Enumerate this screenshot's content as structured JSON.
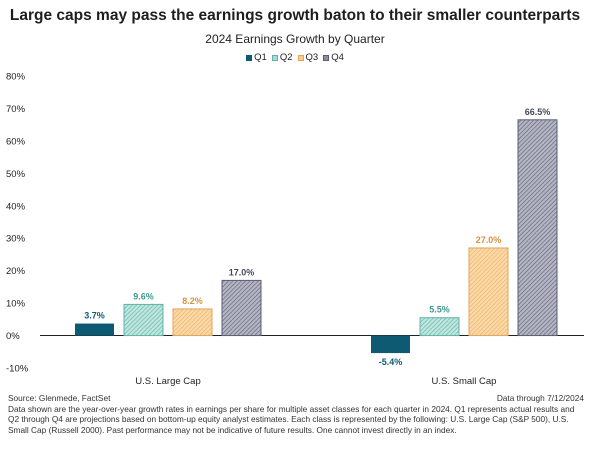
{
  "title": "Large caps may pass the earnings growth baton to their smaller counterparts",
  "subtitle": "2024 Earnings Growth by Quarter",
  "legend": [
    {
      "label": "Q1",
      "color": "#0e5a73",
      "icon": "square-solid"
    },
    {
      "label": "Q2",
      "color": "#a8dcd3",
      "icon": "square-hatched"
    },
    {
      "label": "Q3",
      "color": "#f8cd8e",
      "icon": "square-hatched"
    },
    {
      "label": "Q4",
      "color": "#8a8d9e",
      "icon": "square-hatched"
    }
  ],
  "chart_data": {
    "type": "bar",
    "title": "2024 Earnings Growth by Quarter",
    "categories": [
      "U.S. Large Cap",
      "U.S. Small Cap"
    ],
    "series": [
      {
        "name": "Q1",
        "values": [
          3.7,
          -5.4
        ],
        "labels": [
          "3.7%",
          "-5.4%"
        ]
      },
      {
        "name": "Q2",
        "values": [
          9.6,
          5.5
        ],
        "labels": [
          "9.6%",
          "5.5%"
        ]
      },
      {
        "name": "Q3",
        "values": [
          8.2,
          27.0
        ],
        "labels": [
          "8.2%",
          "27.0%"
        ]
      },
      {
        "name": "Q4",
        "values": [
          17.0,
          66.5
        ],
        "labels": [
          "17.0%",
          "66.5%"
        ]
      }
    ],
    "ylim": [
      -10,
      80
    ],
    "yticks": [
      80,
      70,
      60,
      50,
      40,
      30,
      20,
      10,
      0,
      -10
    ],
    "ytick_labels": [
      "80%",
      "70%",
      "60%",
      "50%",
      "40%",
      "30%",
      "20%",
      "10%",
      "0%",
      "-10%"
    ],
    "grid": false,
    "legend_position": "top"
  },
  "footer": {
    "source": "Source: Glenmede, FactSet",
    "date_note": "Data through 7/12/2024",
    "disclaimer": "Data shown are the year-over-year growth rates in earnings per share for multiple asset classes for each quarter in 2024. Q1 represents actual results and Q2 through Q4 are projections based on bottom-up equity analyst estimates. Each class is represented by the following: U.S. Large Cap (S&P 500), U.S. Small Cap (Russell 2000). Past performance may not be indicative of future results. One cannot invest directly in an index."
  }
}
